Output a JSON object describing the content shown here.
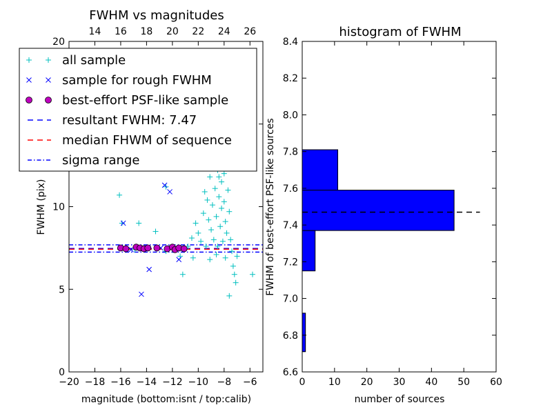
{
  "chart_data": [
    {
      "type": "scatter",
      "title": "FWHM vs magnitudes",
      "xlabel": "magnitude (bottom:isnt / top:calib)",
      "ylabel": "FWHM (pix)",
      "xlim": [
        -20,
        -5
      ],
      "ylim": [
        0,
        20
      ],
      "x_ticks": [
        -20,
        -18,
        -16,
        -14,
        -12,
        -10,
        -8,
        -6
      ],
      "x_tick_labels": [
        "−20",
        "−18",
        "−16",
        "−14",
        "−12",
        "−10",
        "−8",
        "−6"
      ],
      "y_ticks": [
        0,
        5,
        10,
        15,
        20
      ],
      "y_tick_labels": [
        "0",
        "5",
        "10",
        "15",
        "20"
      ],
      "top_axis": {
        "offset": 32,
        "ticks": [
          14,
          16,
          18,
          20,
          22,
          24,
          26
        ],
        "tick_labels": [
          "14",
          "16",
          "18",
          "20",
          "22",
          "24",
          "26"
        ]
      },
      "legend_placement": "upper-left",
      "series": [
        {
          "name": "all sample",
          "marker": "plus",
          "color": "#00bfbf",
          "points": [
            [
              -16.1,
              10.7
            ],
            [
              -15.9,
              9.0
            ],
            [
              -14.6,
              9.0
            ],
            [
              -14.9,
              7.4
            ],
            [
              -13.3,
              8.5
            ],
            [
              -12.5,
              7.3
            ],
            [
              -11.4,
              7.0
            ],
            [
              -10.8,
              7.6
            ],
            [
              -10.5,
              8.1
            ],
            [
              -10.2,
              9.0
            ],
            [
              -10.0,
              8.4
            ],
            [
              -9.8,
              7.9
            ],
            [
              -9.6,
              9.6
            ],
            [
              -9.5,
              10.9
            ],
            [
              -9.4,
              7.6
            ],
            [
              -9.3,
              10.4
            ],
            [
              -9.2,
              9.2
            ],
            [
              -9.1,
              11.8
            ],
            [
              -9.0,
              8.6
            ],
            [
              -8.9,
              10.1
            ],
            [
              -8.9,
              12.7
            ],
            [
              -8.8,
              8.0
            ],
            [
              -8.7,
              11.1
            ],
            [
              -8.7,
              13.9
            ],
            [
              -8.6,
              9.4
            ],
            [
              -8.5,
              12.2
            ],
            [
              -8.5,
              7.6
            ],
            [
              -8.4,
              10.6
            ],
            [
              -8.4,
              15.6
            ],
            [
              -8.3,
              8.8
            ],
            [
              -8.3,
              13.2
            ],
            [
              -8.2,
              11.5
            ],
            [
              -8.2,
              9.9
            ],
            [
              -8.1,
              14.5
            ],
            [
              -8.1,
              7.9
            ],
            [
              -8.0,
              12.0
            ],
            [
              -8.0,
              10.3
            ],
            [
              -7.9,
              9.1
            ],
            [
              -7.9,
              13.6
            ],
            [
              -7.8,
              8.4
            ],
            [
              -7.7,
              11.0
            ],
            [
              -7.6,
              9.7
            ],
            [
              -7.5,
              8.0
            ],
            [
              -7.4,
              7.3
            ],
            [
              -7.3,
              6.4
            ],
            [
              -7.2,
              5.9
            ],
            [
              -7.6,
              4.6
            ],
            [
              -7.1,
              5.4
            ],
            [
              -7.0,
              7.0
            ],
            [
              -7.9,
              6.9
            ],
            [
              -8.6,
              7.1
            ],
            [
              -9.1,
              6.8
            ],
            [
              -5.8,
              5.9
            ],
            [
              -11.2,
              5.9
            ],
            [
              -12.5,
              11.2
            ],
            [
              -10.4,
              6.9
            ],
            [
              -8.4,
              11.8
            ],
            [
              -8.8,
              14.9
            ],
            [
              -8.1,
              15.8
            ],
            [
              -9.0,
              13.0
            ]
          ]
        },
        {
          "name": "sample for rough FWHM",
          "marker": "x",
          "color": "#0000ff",
          "points": [
            [
              -15.8,
              9.0
            ],
            [
              -15.2,
              7.4
            ],
            [
              -14.4,
              4.7
            ],
            [
              -13.8,
              6.2
            ],
            [
              -12.6,
              11.3
            ],
            [
              -12.2,
              10.9
            ],
            [
              -11.5,
              6.8
            ],
            [
              -11.2,
              7.5
            ],
            [
              -12.9,
              7.5
            ]
          ]
        },
        {
          "name": "best-effort PSF-like sample",
          "marker": "circle",
          "color": "#bf00bf",
          "points": [
            [
              -16.0,
              7.5
            ],
            [
              -15.6,
              7.45
            ],
            [
              -14.8,
              7.55
            ],
            [
              -14.5,
              7.5
            ],
            [
              -14.2,
              7.45
            ],
            [
              -13.9,
              7.5
            ],
            [
              -13.2,
              7.5
            ],
            [
              -12.4,
              7.45
            ],
            [
              -12.0,
              7.55
            ],
            [
              -11.8,
              7.4
            ],
            [
              -11.5,
              7.5
            ],
            [
              -11.1,
              7.45
            ]
          ]
        }
      ],
      "lines": [
        {
          "name": "resultant FWHM: 7.47",
          "y": 7.47,
          "style": "dashed",
          "color": "#0000ff"
        },
        {
          "name": "median FHWM of sequence",
          "y": 7.47,
          "style": "dashed",
          "color": "#ff0000"
        },
        {
          "name": "sigma range",
          "y": [
            7.25,
            7.69
          ],
          "style": "dashdot",
          "color": "#0000ff"
        }
      ]
    },
    {
      "type": "bar",
      "orientation": "horizontal",
      "title": "histogram of FWHM",
      "xlabel": "number of sources",
      "ylabel": "FWHM of best-effort PSF-like sources",
      "xlim": [
        0,
        60
      ],
      "ylim": [
        6.6,
        8.4
      ],
      "x_ticks": [
        0,
        10,
        20,
        30,
        40,
        50,
        60
      ],
      "x_tick_labels": [
        "0",
        "10",
        "20",
        "30",
        "40",
        "50",
        "60"
      ],
      "y_ticks": [
        6.6,
        6.8,
        7.0,
        7.2,
        7.4,
        7.6,
        7.8,
        8.0,
        8.2,
        8.4
      ],
      "y_tick_labels": [
        "6.6",
        "6.8",
        "7.0",
        "7.2",
        "7.4",
        "7.6",
        "7.8",
        "8.0",
        "8.2",
        "8.4"
      ],
      "bar_color": "#0000ff",
      "bins": [
        {
          "low": 6.71,
          "high": 6.92,
          "count": 1
        },
        {
          "low": 7.15,
          "high": 7.37,
          "count": 4
        },
        {
          "low": 7.37,
          "high": 7.59,
          "count": 47
        },
        {
          "low": 7.59,
          "high": 7.81,
          "count": 11
        }
      ],
      "reference_line": {
        "y": 7.47,
        "x_end": 55,
        "style": "dashed",
        "color": "#000000"
      }
    }
  ]
}
